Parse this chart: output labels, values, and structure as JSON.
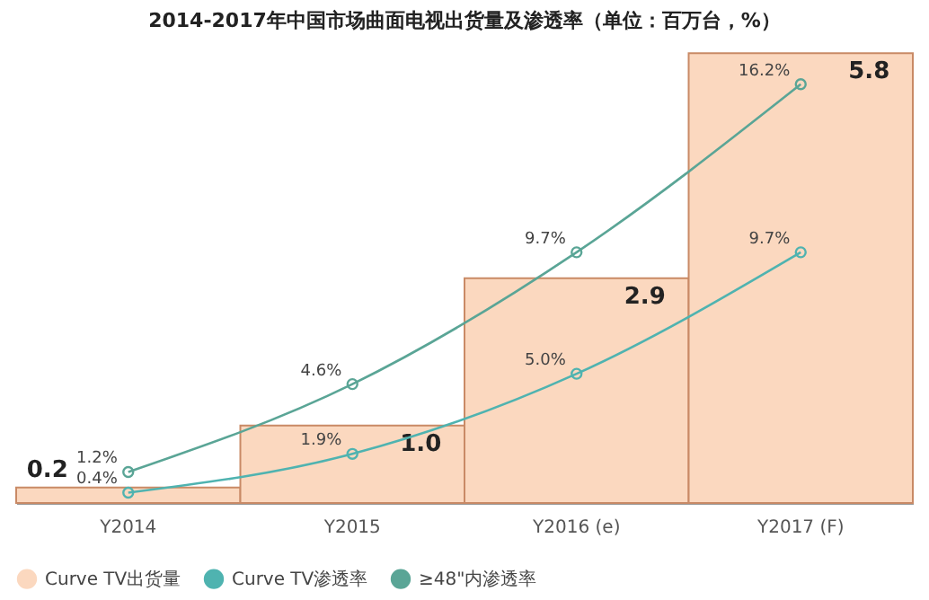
{
  "chart_data": {
    "type": "bar",
    "title": "2014-2017年中国市场曲面电视出货量及渗透率（单位：百万台，%）",
    "categories": [
      "Y2014",
      "Y2015",
      "Y2016 (e)",
      "Y2017 (F)"
    ],
    "series": [
      {
        "name": "Curve TV出货量",
        "color": "#fbd8bf",
        "values": [
          0.2,
          1.0,
          2.9,
          5.8
        ],
        "value_labels": [
          "0.2",
          "1.0",
          "2.9",
          "5.8"
        ]
      },
      {
        "name": "Curve TV渗透率",
        "type": "line",
        "axis": "y2",
        "color": "#4fb3b0",
        "values": [
          0.4,
          1.9,
          5.0,
          9.7
        ],
        "value_labels": [
          "0.4%",
          "1.9%",
          "5.0%",
          "9.7%"
        ]
      },
      {
        "name": "≥48\"内渗透率",
        "type": "line",
        "axis": "y2",
        "color": "#5aa596",
        "values": [
          1.2,
          4.6,
          9.7,
          16.2
        ],
        "value_labels": [
          "1.2%",
          "4.6%",
          "9.7%",
          "16.2%"
        ]
      }
    ],
    "tick_labels": "x",
    "legend": "bottom",
    "marker": "circle",
    "line_style": "solid"
  }
}
